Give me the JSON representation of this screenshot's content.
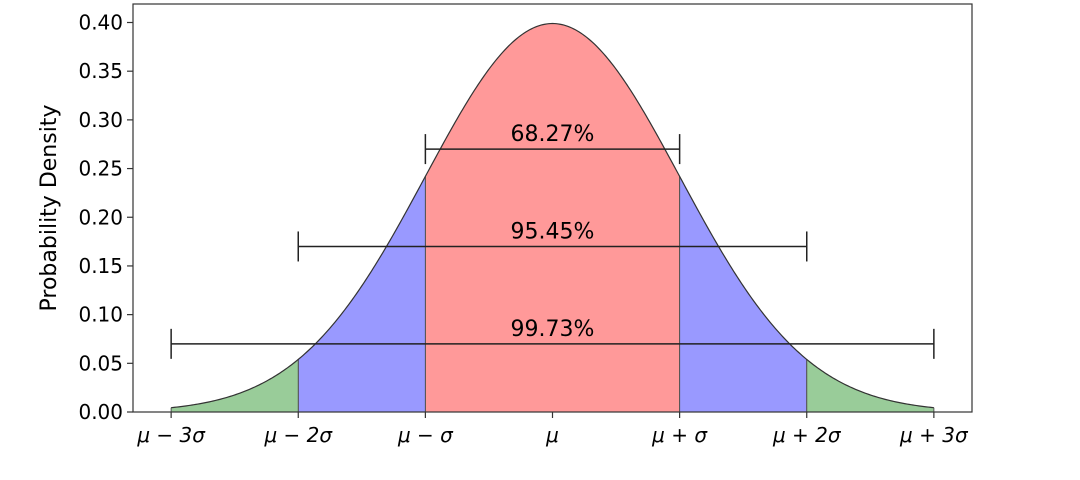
{
  "chart_data": {
    "type": "area",
    "title": "",
    "xlabel": "",
    "ylabel": "Probability Density",
    "xlim": [
      -3.3,
      3.3
    ],
    "ylim": [
      0,
      0.419
    ],
    "grid": false,
    "curve": "standard normal density, mu=0, sigma=1",
    "x_ticks": [
      -3,
      -2,
      -1,
      0,
      1,
      2,
      3
    ],
    "x_tick_labels": [
      "μ − 3σ",
      "μ − 2σ",
      "μ − σ",
      "μ",
      "μ + σ",
      "μ + 2σ",
      "μ + 3σ"
    ],
    "y_ticks": [
      0,
      0.05,
      0.1,
      0.15,
      0.2,
      0.25,
      0.3,
      0.35,
      0.4
    ],
    "y_tick_labels": [
      "0.00",
      "0.05",
      "0.10",
      "0.15",
      "0.20",
      "0.25",
      "0.30",
      "0.35",
      "0.40"
    ],
    "regions": [
      {
        "from": -1,
        "to": 1,
        "color": "#ff9999"
      },
      {
        "from": -2,
        "to": -1,
        "color": "#9999ff"
      },
      {
        "from": 1,
        "to": 2,
        "color": "#9999ff"
      },
      {
        "from": -3,
        "to": -2,
        "color": "#99cc99"
      },
      {
        "from": 2,
        "to": 3,
        "color": "#99cc99"
      }
    ],
    "intervals": [
      {
        "label": "68.27%",
        "from": -1,
        "to": 1,
        "y": 0.27
      },
      {
        "label": "95.45%",
        "from": -2,
        "to": 2,
        "y": 0.17
      },
      {
        "label": "99.73%",
        "from": -3,
        "to": 3,
        "y": 0.07
      }
    ]
  }
}
